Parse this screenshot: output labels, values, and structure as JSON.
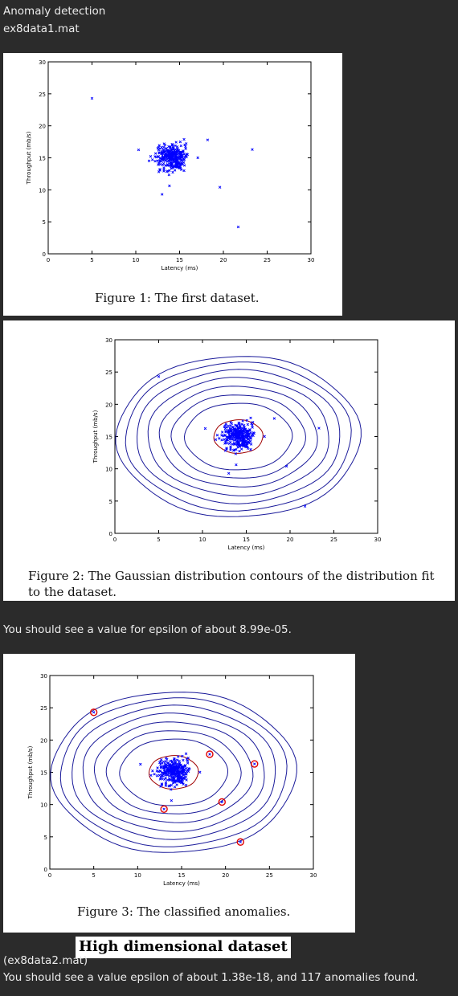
{
  "header": {
    "title": "Anomaly detection",
    "subtitle": "ex8data1.mat"
  },
  "figures": [
    {
      "caption": "Figure 1: The first dataset."
    },
    {
      "caption": "Figure 2: The Gaussian distribution contours of the distribution fit to the dataset."
    },
    {
      "caption": "Figure 3: The classified anomalies."
    }
  ],
  "text": {
    "epsilon_note": "You should see a value for epsilon of about 8.99e-05.",
    "section_heading": "High dimensional dataset",
    "dataset_label": "(ex8data2.mat)",
    "result_note": "You should see a value epsilon of about 1.38e-18, and 117 anomalies found."
  },
  "colors": {
    "point": "#0000ff",
    "contour": "#1a1a9a",
    "inner_contour": "#a00000",
    "anomaly_circle": "#e00000"
  },
  "chart_data": [
    {
      "type": "scatter",
      "xlabel": "Latency (ms)",
      "ylabel": "Throughput (mb/s)",
      "xlim": [
        0,
        30
      ],
      "ylim": [
        0,
        30
      ],
      "xticks": [
        0,
        5,
        10,
        15,
        20,
        25,
        30
      ],
      "yticks": [
        0,
        5,
        10,
        15,
        20,
        25,
        30
      ],
      "cluster": {
        "center": [
          14.1,
          15.0
        ],
        "spread": [
          0.9,
          1.0
        ],
        "count": 290
      },
      "outliers": [
        [
          5.0,
          24.3
        ],
        [
          13.0,
          9.3
        ],
        [
          18.2,
          17.8
        ],
        [
          19.6,
          10.4
        ],
        [
          21.7,
          4.2
        ],
        [
          23.3,
          16.3
        ]
      ]
    },
    {
      "type": "scatter",
      "xlabel": "Latency (ms)",
      "ylabel": "Throughput (mb/s)",
      "xlim": [
        0,
        30
      ],
      "ylim": [
        0,
        30
      ],
      "xticks": [
        0,
        5,
        10,
        15,
        20,
        25,
        30
      ],
      "yticks": [
        0,
        5,
        10,
        15,
        20,
        25,
        30
      ],
      "contours": true
    },
    {
      "type": "scatter",
      "xlabel": "Latency (ms)",
      "ylabel": "Throughput (mb/s)",
      "xlim": [
        0,
        30
      ],
      "ylim": [
        0,
        30
      ],
      "xticks": [
        0,
        5,
        10,
        15,
        20,
        25,
        30
      ],
      "yticks": [
        0,
        5,
        10,
        15,
        20,
        25,
        30
      ],
      "contours": true,
      "anomalies_circled": true
    }
  ]
}
